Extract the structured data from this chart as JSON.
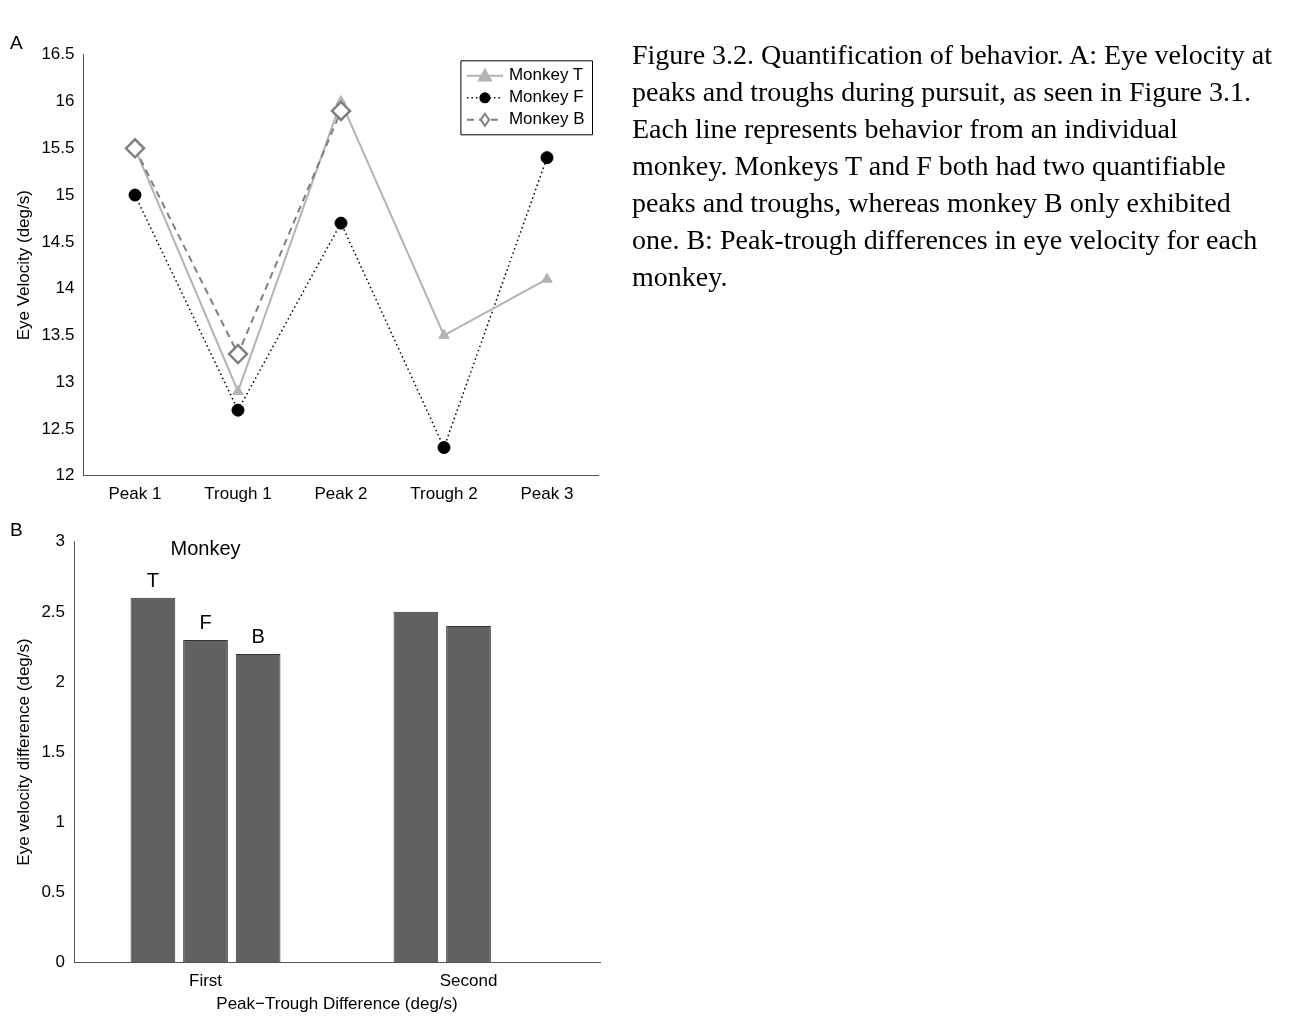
{
  "chart_data": [
    {
      "type": "line",
      "title": "A",
      "categories": [
        "Peak 1",
        "Trough 1",
        "Peak 2",
        "Trough 2",
        "Peak 3"
      ],
      "ylabel": "Eye Velocity (deg/s)",
      "ylim": [
        12,
        16.5
      ],
      "yticks": [
        12,
        12.5,
        13,
        13.5,
        14,
        14.5,
        15,
        15.5,
        16,
        16.5
      ],
      "grid": false,
      "legend": "top right",
      "series": [
        {
          "name": "Monkey T",
          "color": "#b3b3b3",
          "marker": "triangle",
          "line_style": "solid",
          "values": [
            15.5,
            12.9,
            16.0,
            13.5,
            14.1
          ]
        },
        {
          "name": "Monkey F",
          "color": "#000000",
          "marker": "circle",
          "line_style": "dotted",
          "values": [
            15.0,
            12.7,
            14.7,
            12.3,
            15.4
          ]
        },
        {
          "name": "Monkey B",
          "color": "#808080",
          "marker": "diamond",
          "line_style": "dashed",
          "values": [
            15.5,
            13.3,
            15.9,
            null,
            null
          ]
        }
      ],
      "annotations": [
        "Figure 3.2. Quantification of behavior. A: Eye velocity at peaks and troughs during pursuit, as seen in Figure 3.1. Each line represents behavior from an individual monkey. Monkeys T and F both had two quantifiable peaks and troughs, whereas monkey B only exhibited one. B: Peak-trough differences in eye velocity for each monkey."
      ]
    },
    {
      "type": "bar",
      "title": "B",
      "categories": [
        "First",
        "Second"
      ],
      "xlabel": "Peak−Trough Difference (deg/s)",
      "ylabel": "Eye velocity difference (deg/s)",
      "ylim": [
        0,
        3
      ],
      "yticks": [
        0,
        0.5,
        1,
        1.5,
        2,
        2.5,
        3
      ],
      "grid": false,
      "legend_title": "Monkey",
      "series": [
        {
          "name": "T",
          "color": "#616161",
          "values": [
            2.6,
            2.5
          ]
        },
        {
          "name": "F",
          "color": "#616161",
          "values": [
            2.3,
            2.4
          ]
        },
        {
          "name": "B",
          "color": "#616161",
          "values": [
            2.2,
            null
          ]
        }
      ]
    }
  ]
}
